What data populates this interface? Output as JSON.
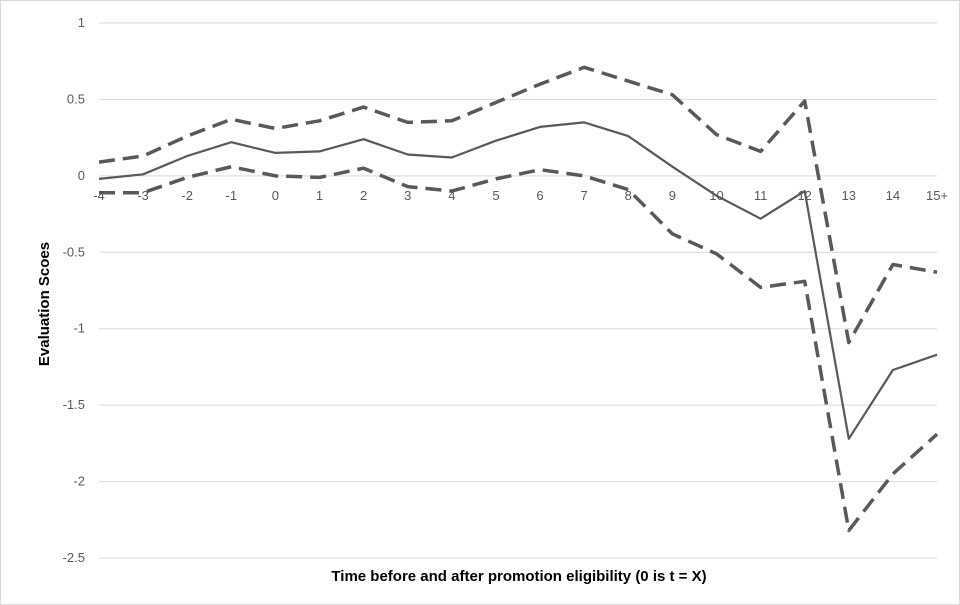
{
  "chart_data": {
    "type": "line",
    "title": "",
    "xlabel": "Time before and after promotion eligibility (0 is t = X)",
    "ylabel": "Evaluation Scoes",
    "categories": [
      "-4",
      "-3",
      "-2",
      "-1",
      "0",
      "1",
      "2",
      "3",
      "4",
      "5",
      "6",
      "7",
      "8",
      "9",
      "10",
      "11",
      "12",
      "13",
      "14",
      "15+"
    ],
    "ylim": [
      -2.5,
      1
    ],
    "yticks": [
      1,
      0.5,
      0,
      -0.5,
      -1,
      -1.5,
      -2,
      -2.5
    ],
    "ytick_labels": [
      "1",
      "0.5",
      "0",
      "-0.5",
      "-1",
      "-1.5",
      "-2",
      "-2.5"
    ],
    "grid": true,
    "series": [
      {
        "style": "dashed",
        "values": [
          0.09,
          0.13,
          0.26,
          0.37,
          0.31,
          0.36,
          0.45,
          0.35,
          0.36,
          0.48,
          0.6,
          0.71,
          0.62,
          0.53,
          0.27,
          0.16,
          0.49,
          -1.09,
          -0.58,
          -0.63
        ]
      },
      {
        "style": "solid",
        "values": [
          -0.02,
          0.01,
          0.13,
          0.22,
          0.15,
          0.16,
          0.24,
          0.14,
          0.12,
          0.23,
          0.32,
          0.35,
          0.26,
          0.06,
          -0.13,
          -0.28,
          -0.1,
          -1.72,
          -1.27,
          -1.17
        ]
      },
      {
        "style": "dashed",
        "values": [
          -0.11,
          -0.11,
          -0.01,
          0.06,
          0.0,
          -0.01,
          0.05,
          -0.07,
          -0.1,
          -0.02,
          0.04,
          0.0,
          -0.09,
          -0.38,
          -0.51,
          -0.73,
          -0.69,
          -2.32,
          -1.95,
          -1.69
        ]
      }
    ],
    "colors": {
      "series_line": "#595959",
      "grid": "#d9d9d9",
      "tick_text": "#595959",
      "axis_title": "#000000"
    }
  }
}
